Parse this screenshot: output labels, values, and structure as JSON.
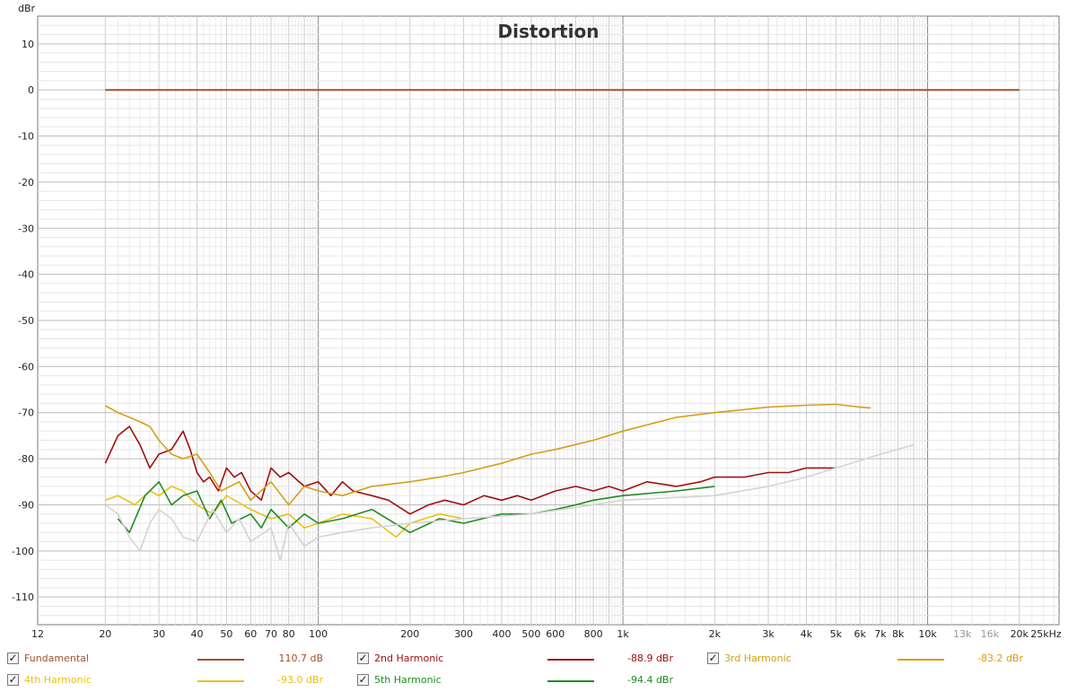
{
  "chart_data": {
    "type": "line",
    "title": "Distortion",
    "ylabel": "dBr",
    "xunit": "kHz",
    "xscale": "log",
    "xlim": [
      12,
      27000
    ],
    "ylim": [
      -116,
      16
    ],
    "grid": true,
    "yticks": [
      10,
      0,
      -10,
      -20,
      -30,
      -40,
      -50,
      -60,
      -70,
      -80,
      -90,
      -100,
      -110
    ],
    "xticks": [
      {
        "v": 12,
        "label": "12"
      },
      {
        "v": 20,
        "label": "20"
      },
      {
        "v": 30,
        "label": "30"
      },
      {
        "v": 40,
        "label": "40"
      },
      {
        "v": 50,
        "label": "50"
      },
      {
        "v": 60,
        "label": "60"
      },
      {
        "v": 70,
        "label": "70"
      },
      {
        "v": 80,
        "label": "80"
      },
      {
        "v": 100,
        "label": "100"
      },
      {
        "v": 200,
        "label": "200"
      },
      {
        "v": 300,
        "label": "300"
      },
      {
        "v": 400,
        "label": "400"
      },
      {
        "v": 500,
        "label": "500"
      },
      {
        "v": 600,
        "label": "600"
      },
      {
        "v": 800,
        "label": "800"
      },
      {
        "v": 1000,
        "label": "1k"
      },
      {
        "v": 2000,
        "label": "2k"
      },
      {
        "v": 3000,
        "label": "3k"
      },
      {
        "v": 4000,
        "label": "4k"
      },
      {
        "v": 5000,
        "label": "5k"
      },
      {
        "v": 6000,
        "label": "6k"
      },
      {
        "v": 7000,
        "label": "7k"
      },
      {
        "v": 8000,
        "label": "8k"
      },
      {
        "v": 10000,
        "label": "10k"
      },
      {
        "v": 13000,
        "label": "13k",
        "muted": true
      },
      {
        "v": 16000,
        "label": "16k",
        "muted": true
      },
      {
        "v": 20000,
        "label": "20k"
      },
      {
        "v": 25000,
        "label": "25kHz"
      }
    ],
    "series": [
      {
        "name": "Fundamental",
        "color": "#a0522d",
        "x": [
          20,
          20000
        ],
        "y": [
          0,
          0
        ]
      },
      {
        "name": "2nd Harmonic",
        "color": "#a01010",
        "x": [
          20,
          22,
          24,
          26,
          28,
          30,
          33,
          36,
          38,
          40,
          42,
          44,
          47,
          50,
          53,
          56,
          60,
          65,
          70,
          75,
          80,
          90,
          100,
          110,
          120,
          130,
          150,
          170,
          200,
          230,
          260,
          300,
          350,
          400,
          450,
          500,
          600,
          700,
          800,
          900,
          1000,
          1200,
          1500,
          1800,
          2000,
          2500,
          3000,
          3500,
          4000,
          5000
        ],
        "y": [
          -81,
          -75,
          -73,
          -77,
          -82,
          -79,
          -78,
          -74,
          -78,
          -83,
          -85,
          -84,
          -87,
          -82,
          -84,
          -83,
          -87,
          -89,
          -82,
          -84,
          -83,
          -86,
          -85,
          -88,
          -85,
          -87,
          -88,
          -89,
          -92,
          -90,
          -89,
          -90,
          -88,
          -89,
          -88,
          -89,
          -87,
          -86,
          -87,
          -86,
          -87,
          -85,
          -86,
          -85,
          -84,
          -84,
          -83,
          -83,
          -82,
          -82
        ]
      },
      {
        "name": "3rd Harmonic",
        "color": "#d4a017",
        "x": [
          20,
          22,
          24,
          26,
          28,
          30,
          33,
          36,
          40,
          44,
          48,
          55,
          60,
          70,
          80,
          90,
          100,
          120,
          150,
          200,
          250,
          300,
          400,
          500,
          600,
          800,
          1000,
          1500,
          2000,
          3000,
          4000,
          5000,
          6000,
          6500
        ],
        "y": [
          -68.5,
          -70,
          -71,
          -72,
          -73,
          -76,
          -79,
          -80,
          -79,
          -83,
          -87,
          -85,
          -89,
          -85,
          -90,
          -86,
          -87,
          -88,
          -86,
          -85,
          -84,
          -83,
          -81,
          -79,
          -78,
          -76,
          -74,
          -71,
          -70,
          -68.8,
          -68.4,
          -68.2,
          -68.8,
          -69
        ]
      },
      {
        "name": "4th Harmonic",
        "color": "#e8c11a",
        "x": [
          20,
          22,
          25,
          28,
          30,
          33,
          36,
          40,
          45,
          50,
          60,
          70,
          80,
          90,
          100,
          120,
          150,
          180,
          200,
          250,
          300
        ],
        "y": [
          -89,
          -88,
          -90,
          -87,
          -88,
          -86,
          -87,
          -90,
          -92,
          -88,
          -91,
          -93,
          -92,
          -95,
          -94,
          -92,
          -93,
          -97,
          -94,
          -92,
          -93
        ]
      },
      {
        "name": "5th Harmonic",
        "color": "#228b22",
        "x": [
          22,
          24,
          27,
          30,
          33,
          36,
          40,
          44,
          48,
          52,
          60,
          65,
          70,
          80,
          90,
          100,
          120,
          150,
          200,
          250,
          300,
          400,
          500,
          600,
          700,
          800,
          1000,
          1500,
          2000
        ],
        "y": [
          -93,
          -96,
          -88,
          -85,
          -90,
          -88,
          -87,
          -93,
          -89,
          -94,
          -92,
          -95,
          -91,
          -95,
          -92,
          -94,
          -93,
          -91,
          -96,
          -93,
          -94,
          -92,
          -92,
          -91,
          -90,
          -89,
          -88,
          -87,
          -86
        ]
      },
      {
        "color": "#d4d4d4",
        "x": [
          20,
          22,
          24,
          26,
          28,
          30,
          33,
          36,
          40,
          45,
          50,
          55,
          60,
          70,
          75,
          80,
          90,
          100,
          120,
          150,
          200,
          300,
          500,
          1000,
          2000,
          3000,
          4000,
          5000,
          7000,
          9000
        ],
        "y": [
          -90,
          -92,
          -97,
          -100,
          -94,
          -91,
          -93,
          -97,
          -98,
          -91,
          -96,
          -93,
          -98,
          -95,
          -102,
          -94,
          -99,
          -97,
          -96,
          -95,
          -94,
          -93,
          -92,
          -89,
          -88,
          -86,
          -84,
          -82,
          -79,
          -77
        ]
      }
    ]
  },
  "legend": [
    {
      "checked": "✓",
      "name": "Fundamental",
      "value": "110.7 dB",
      "color": "#a0522d"
    },
    {
      "checked": "✓",
      "name": "2nd Harmonic",
      "value": "-88.9 dBr",
      "color": "#a01010"
    },
    {
      "checked": "✓",
      "name": "3rd Harmonic",
      "value": "-83.2 dBr",
      "color": "#d4a017"
    },
    {
      "checked": "✓",
      "name": "4th Harmonic",
      "value": "-93.0 dBr",
      "color": "#e8c11a"
    },
    {
      "checked": "✓",
      "name": "5th Harmonic",
      "value": "-94.4 dBr",
      "color": "#228b22"
    }
  ]
}
